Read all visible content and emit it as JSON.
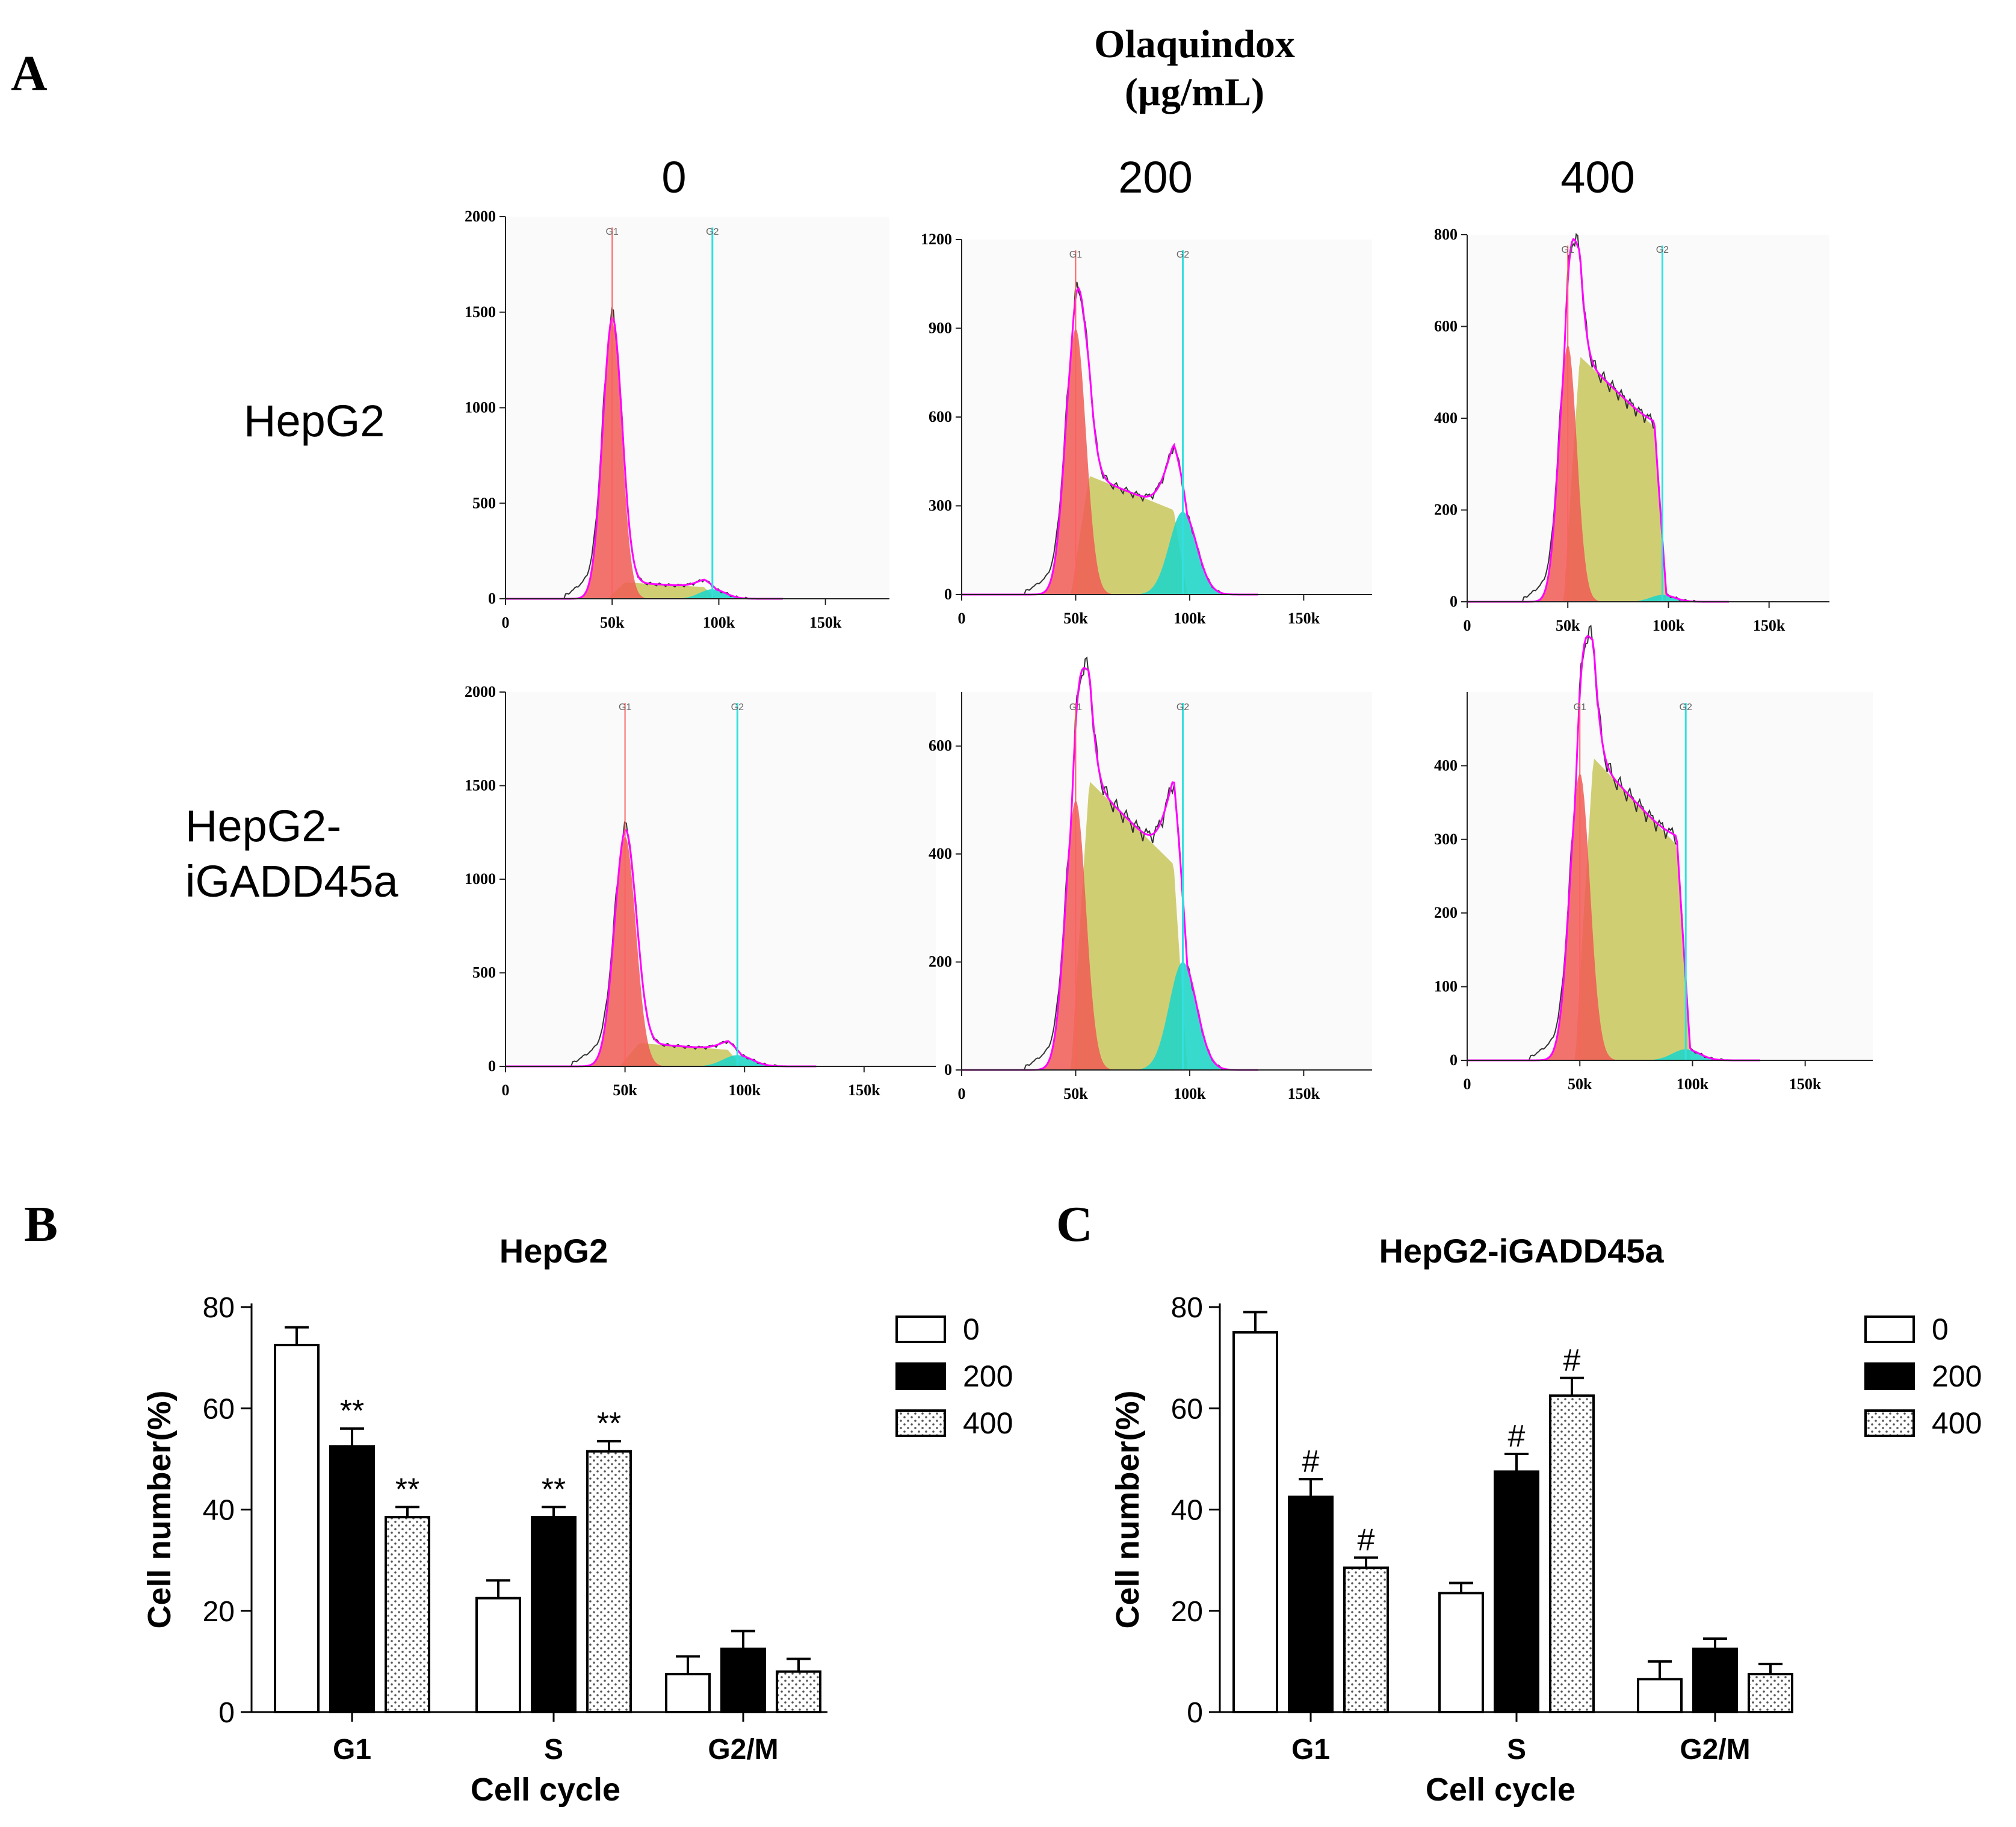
{
  "panels": {
    "a": "A",
    "b": "B",
    "c": "C"
  },
  "treatment": {
    "title": "Olaquindox",
    "unit": "(µg/mL)"
  },
  "doses": [
    "0",
    "200",
    "400"
  ],
  "cell_lines": [
    {
      "line1": "HepG2",
      "line2": ""
    },
    {
      "line1": "HepG2-",
      "line2": "iGADD45a"
    }
  ],
  "histogram_gate_labels": {
    "g1": "G1",
    "g2": "G2"
  },
  "histogram_x_ticks": [
    "0",
    "50k",
    "100k",
    "150k"
  ],
  "histograms": [
    {
      "row": 0,
      "dose": "0",
      "y_ticks": [
        0,
        500,
        1000,
        1500,
        2000
      ],
      "y_max": 2000,
      "g1_peak": 1450,
      "s_level": 90,
      "g2_peak": 50
    },
    {
      "row": 0,
      "dose": "200",
      "y_ticks": [
        0,
        300,
        600,
        900,
        1200
      ],
      "y_max": 1200,
      "g1_peak": 900,
      "s_level": 420,
      "g2_peak": 280
    },
    {
      "row": 0,
      "dose": "400",
      "y_ticks": [
        0,
        200,
        400,
        600,
        800
      ],
      "y_max": 800,
      "g1_peak": 560,
      "s_level": 560,
      "g2_peak": 15
    },
    {
      "row": 1,
      "dose": "0",
      "y_ticks": [
        0,
        500,
        1000,
        1500,
        2000
      ],
      "y_max": 2000,
      "g1_peak": 1230,
      "s_level": 130,
      "g2_peak": 60
    },
    {
      "row": 1,
      "dose": "200",
      "y_ticks": [
        0,
        200,
        400,
        600
      ],
      "y_max": 700,
      "g1_peak": 500,
      "s_level": 560,
      "g2_peak": 200
    },
    {
      "row": 1,
      "dose": "400",
      "y_ticks": [
        0,
        100,
        200,
        300,
        400
      ],
      "y_max": 500,
      "g1_peak": 390,
      "s_level": 430,
      "g2_peak": 15
    }
  ],
  "chart_data": [
    {
      "type": "bar",
      "title": "HepG2",
      "xlabel": "Cell cycle",
      "ylabel": "Cell number(%)",
      "ylim": [
        0,
        80
      ],
      "yticks": [
        0,
        20,
        40,
        60,
        80
      ],
      "categories": [
        "G1",
        "S",
        "G2/M"
      ],
      "legend_position": "top-right",
      "series": [
        {
          "name": "0",
          "pattern": "white",
          "values": [
            72.5,
            22.5,
            7.5
          ],
          "errors": [
            3.5,
            3.5,
            3.5
          ],
          "markers": [
            "",
            "",
            ""
          ]
        },
        {
          "name": "200",
          "pattern": "black",
          "values": [
            52.5,
            38.5,
            12.5
          ],
          "errors": [
            3.5,
            2.0,
            3.5
          ],
          "markers": [
            "**",
            "**",
            ""
          ]
        },
        {
          "name": "400",
          "pattern": "dotted",
          "values": [
            38.5,
            51.5,
            8.0
          ],
          "errors": [
            2.0,
            2.0,
            2.5
          ],
          "markers": [
            "**",
            "**",
            ""
          ]
        }
      ]
    },
    {
      "type": "bar",
      "title": "HepG2-iGADD45a",
      "xlabel": "Cell cycle",
      "ylabel": "Cell number(%)",
      "ylim": [
        0,
        80
      ],
      "yticks": [
        0,
        20,
        40,
        60,
        80
      ],
      "categories": [
        "G1",
        "S",
        "G2/M"
      ],
      "legend_position": "top-right",
      "series": [
        {
          "name": "0",
          "pattern": "white",
          "values": [
            75.0,
            23.5,
            6.5
          ],
          "errors": [
            4.0,
            2.0,
            3.5
          ],
          "markers": [
            "",
            "",
            ""
          ]
        },
        {
          "name": "200",
          "pattern": "black",
          "values": [
            42.5,
            47.5,
            12.5
          ],
          "errors": [
            3.5,
            3.5,
            2.0
          ],
          "markers": [
            "#",
            "#",
            ""
          ]
        },
        {
          "name": "400",
          "pattern": "dotted",
          "values": [
            28.5,
            62.5,
            7.5
          ],
          "errors": [
            2.0,
            3.5,
            2.0
          ],
          "markers": [
            "#",
            "#",
            ""
          ]
        }
      ]
    }
  ]
}
